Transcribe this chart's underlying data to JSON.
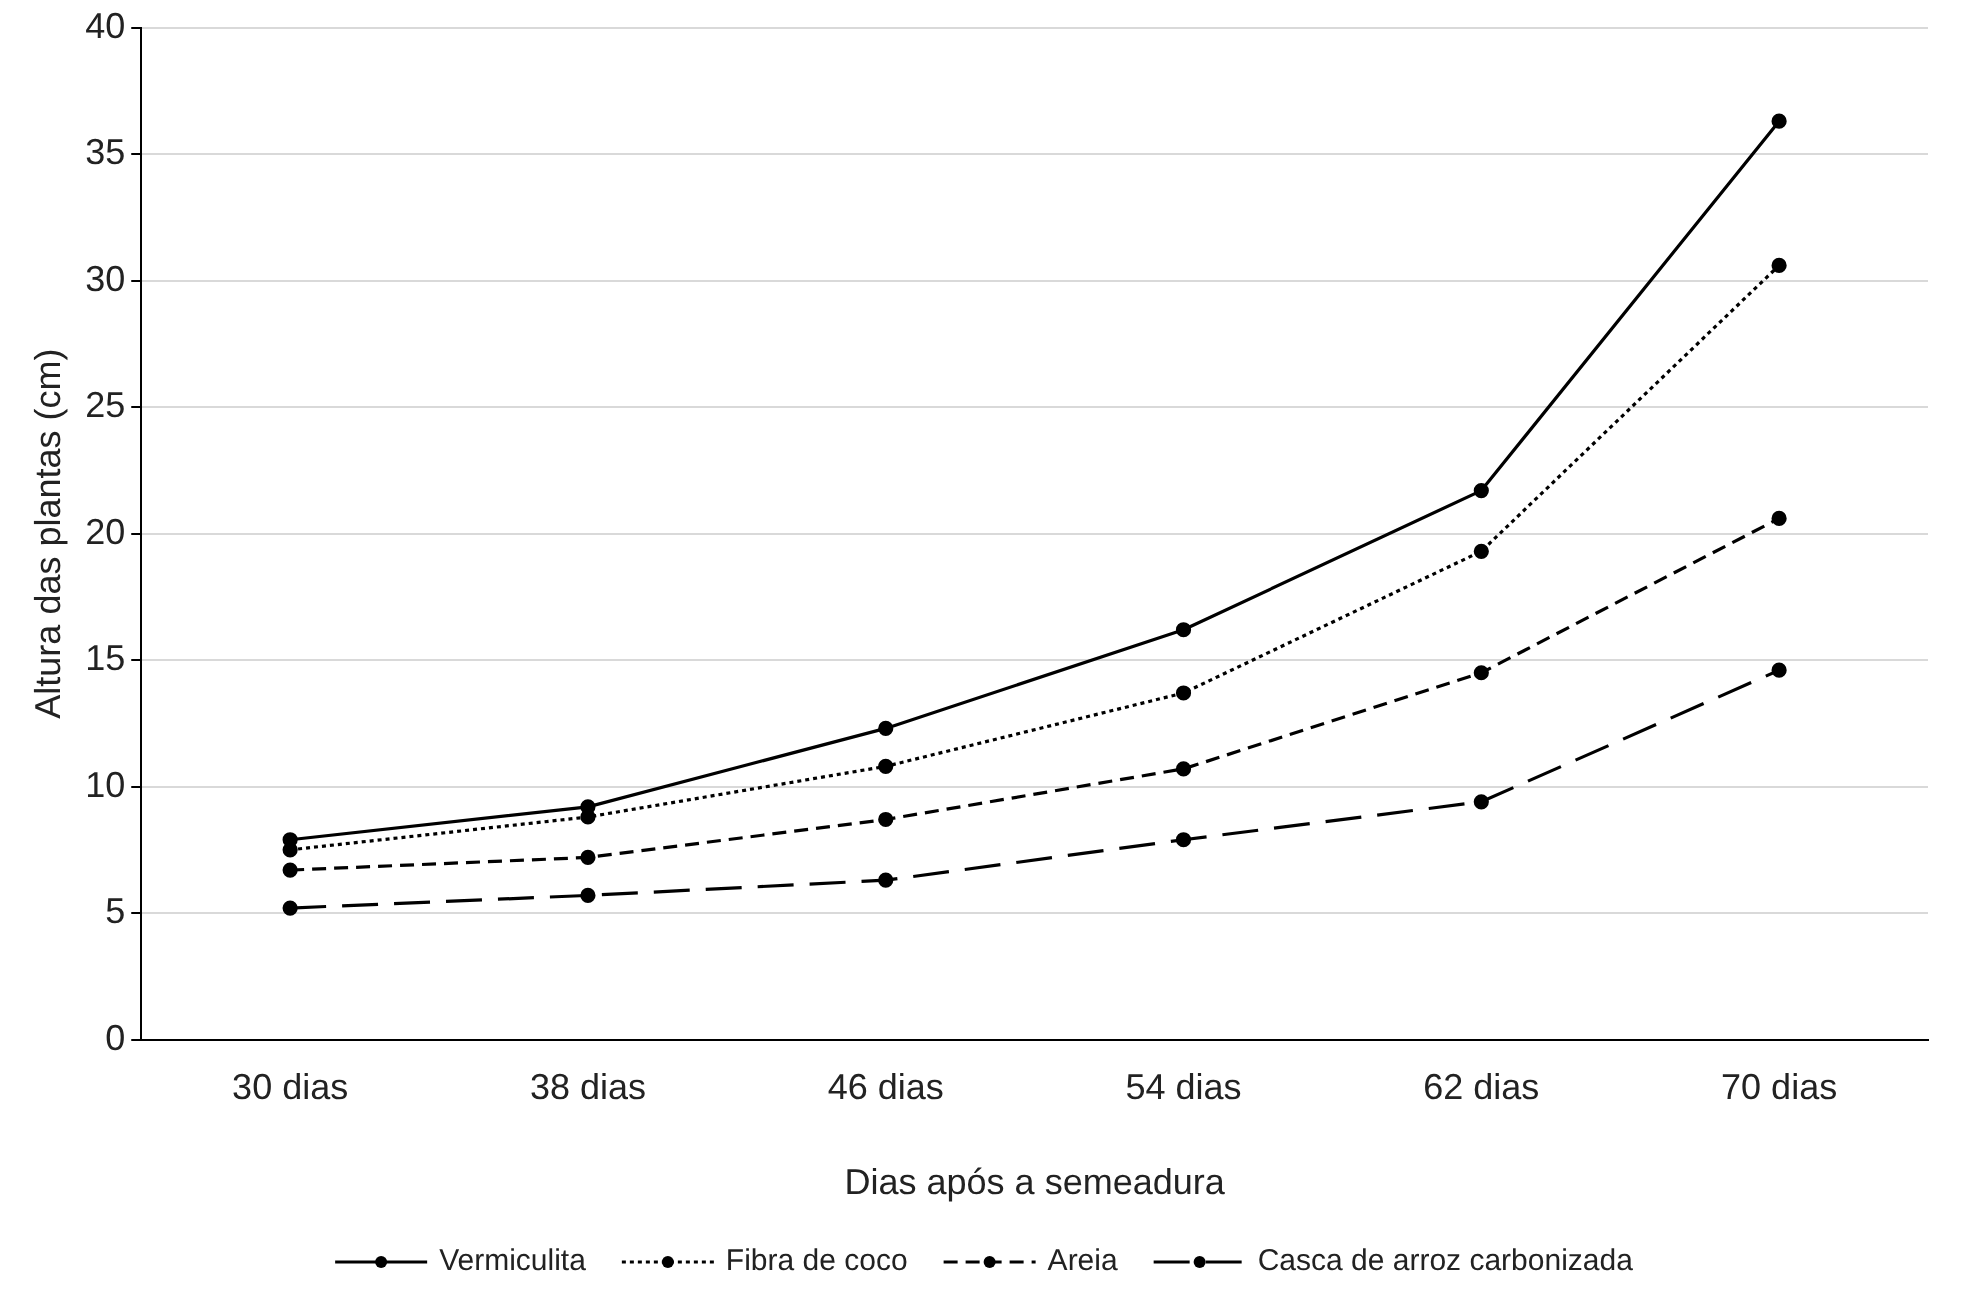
{
  "chart_data": {
    "type": "line",
    "xlabel": "Dias após a semeadura",
    "ylabel": "Altura das plantas (cm)",
    "categories": [
      "30 dias",
      "38 dias",
      "46 dias",
      "54 dias",
      "62 dias",
      "70 dias"
    ],
    "series": [
      {
        "name": "Vermiculita",
        "color": "#000000",
        "line_style": "solid",
        "values": [
          7.9,
          9.2,
          12.3,
          16.2,
          21.7,
          36.3
        ]
      },
      {
        "name": "Fibra de coco",
        "color": "#000000",
        "line_style": "dotted",
        "values": [
          7.5,
          8.8,
          10.8,
          13.7,
          19.3,
          30.6
        ]
      },
      {
        "name": "Areia",
        "color": "#000000",
        "line_style": "dashed",
        "values": [
          6.7,
          7.2,
          8.7,
          10.7,
          14.5,
          20.6
        ]
      },
      {
        "name": "Casca de arroz carbonizada",
        "color": "#000000",
        "line_style": "dashed",
        "values": [
          5.2,
          5.7,
          6.3,
          7.9,
          9.4,
          14.6
        ]
      }
    ],
    "ylim": [
      0,
      40
    ],
    "yticks": [
      0,
      5,
      10,
      15,
      20,
      25,
      30,
      35,
      40
    ],
    "grid": "y",
    "legend": "bottom",
    "marker": "circle"
  }
}
